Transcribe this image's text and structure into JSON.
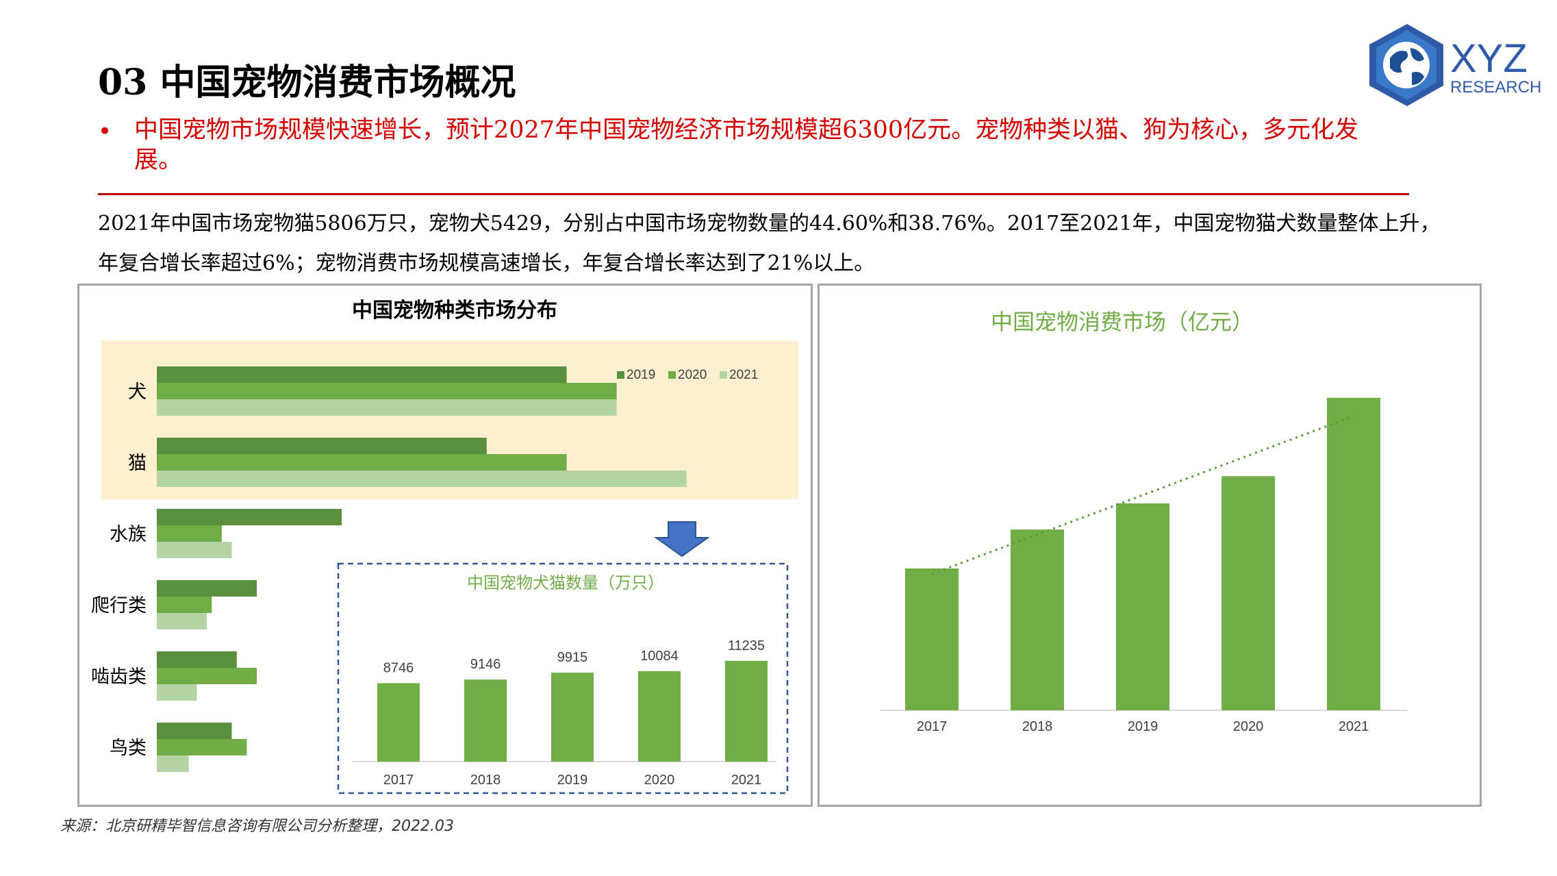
{
  "title": "03 中国宠物消费市场概况",
  "bullet": "中国宠物市场规模快速增长，预计2027年中国宠物经济市场规模超6300亿元。宠物种类以猫、狗为核心，多元化发展。",
  "body_text": "2021年中国市场宠物猫5806万只，宠物犬5429，分别占中国市场宠物数量的44.60%和38.76%。2017至2021年，中国宠物猫犬数量整体上升，年复合增长率超过6%；宠物消费市场规模高速增长，年复合增长率达到了21%以上。",
  "source": "来源：北京研精毕智信息咨询有限公司分析整理，2022.03",
  "logo": {
    "text": "XYZ",
    "subtext": "RESEARCH"
  },
  "colors": {
    "accent_red": "#d40000",
    "green_dark": "#5a8f3d",
    "green": "#70ad47",
    "green_light": "#b5d4a5",
    "highlight": "#fdefcf",
    "arrow_blue": "#4472c4"
  },
  "chart_data": [
    {
      "type": "bar",
      "orientation": "horizontal",
      "title": "中国宠物种类市场分布",
      "categories": [
        "犬",
        "猫",
        "水族",
        "爬行类",
        "啮齿类",
        "鸟类"
      ],
      "series": [
        {
          "name": "2019",
          "values": [
            41,
            33,
            18.5,
            10,
            8,
            7.5
          ]
        },
        {
          "name": "2020",
          "values": [
            46,
            41,
            6.5,
            5.5,
            10,
            9
          ]
        },
        {
          "name": "2021",
          "values": [
            46,
            53,
            7.5,
            5,
            4,
            3.2
          ]
        }
      ],
      "legend": "top-right",
      "axes_visible": false
    },
    {
      "type": "bar",
      "title": "中国宠物犬猫数量（万只）",
      "categories": [
        "2017",
        "2018",
        "2019",
        "2020",
        "2021"
      ],
      "values": [
        8746,
        9146,
        9915,
        10084,
        11235
      ],
      "data_labels": true
    },
    {
      "type": "bar",
      "title": "中国宠物消费市场（亿元）",
      "categories": [
        "2017",
        "2018",
        "2019",
        "2020",
        "2021"
      ],
      "values": [
        1340,
        1708,
        1955,
        2212,
        2953
      ],
      "trendline": "linear-dotted",
      "data_labels": false
    }
  ]
}
